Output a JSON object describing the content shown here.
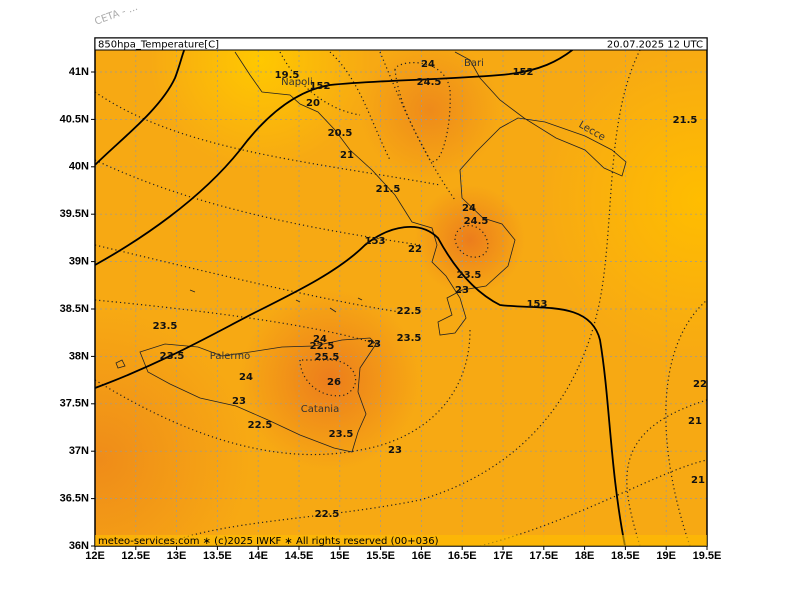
{
  "watermark": "CETA - ...",
  "header": {
    "title": "850hpa_Temperature[C]",
    "valid": "20.07.2025  12 UTC"
  },
  "footer": "meteo-services.com ∗ (c)2025 IWKF ∗ All rights reserved (00+036)",
  "lat_labels": [
    "41N",
    "40.5N",
    "40N",
    "39.5N",
    "39N",
    "38.5N",
    "38N",
    "37.5N",
    "37N",
    "36.5N",
    "36N"
  ],
  "lon_labels": [
    "12E",
    "12.5E",
    "13E",
    "13.5E",
    "14E",
    "14.5E",
    "15E",
    "15.5E",
    "16E",
    "16.5E",
    "17E",
    "17.5E",
    "18E",
    "18.5E",
    "19E",
    "19.5E"
  ],
  "cities": [
    "Bari",
    "Napoli",
    "Lecce",
    "Palermo",
    "Catania"
  ],
  "contour_labels": [
    "24",
    "19.5",
    "152",
    "24.5",
    "152",
    "20",
    "21.5",
    "20.5",
    "21",
    "21.5",
    "24",
    "24.5",
    "153",
    "22",
    "23.5",
    "23",
    "153",
    "22.5",
    "23.5",
    "23",
    "23.5",
    "24",
    "22.5",
    "25.5",
    "23.5",
    "24",
    "26",
    "22",
    "23",
    "22.5",
    "21",
    "23.5",
    "23",
    "21",
    "22.5"
  ]
}
